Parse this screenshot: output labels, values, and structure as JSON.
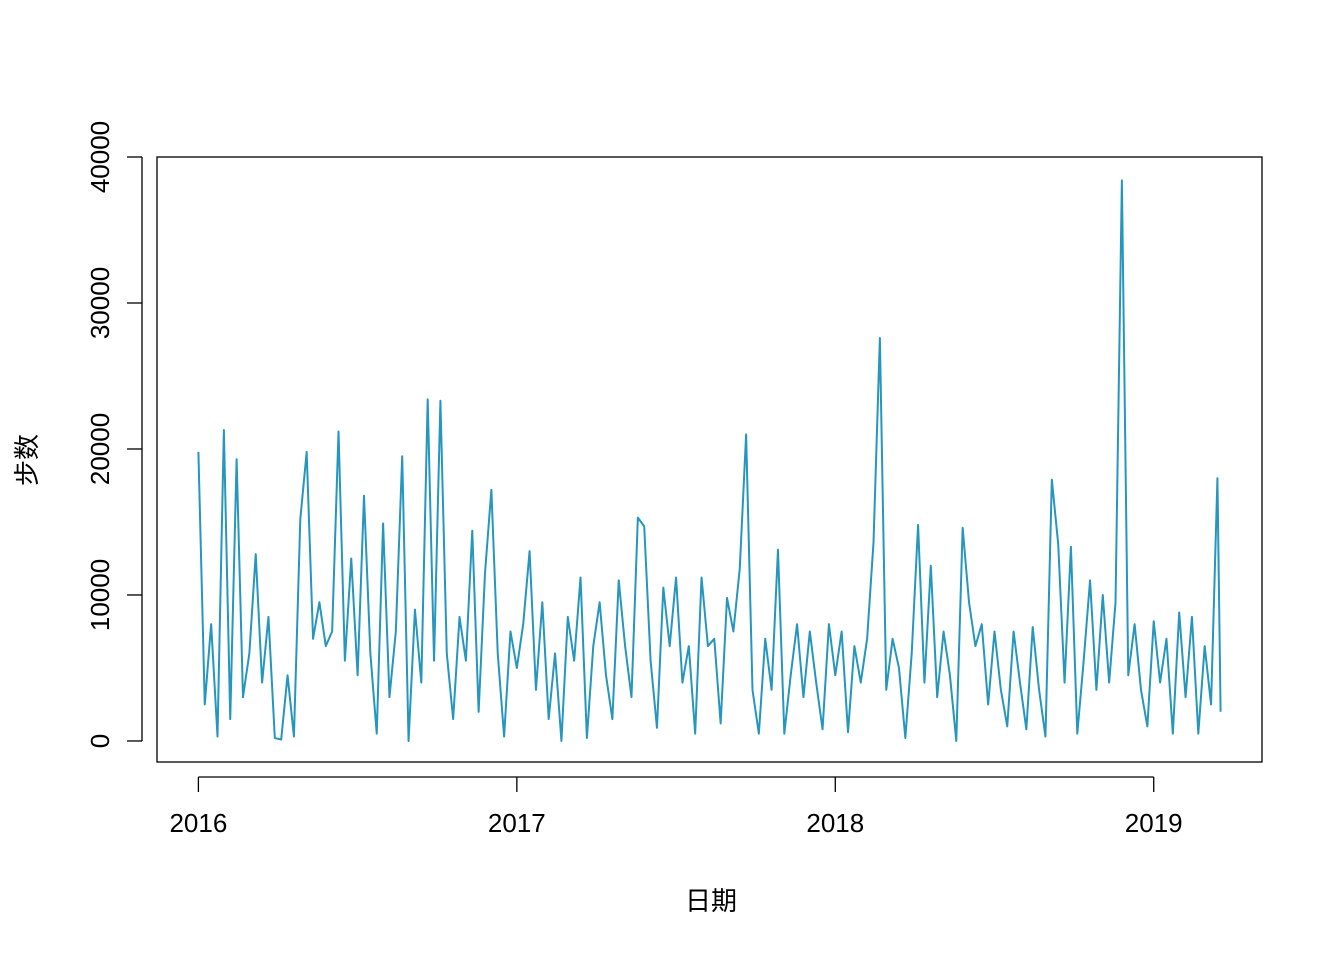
{
  "chart_data": {
    "type": "line",
    "xlabel": "日期",
    "ylabel": "步数",
    "color": "#2596be",
    "xlim": [
      2015.87,
      2019.34
    ],
    "ylim": [
      -1440,
      40000
    ],
    "xticks": [
      2016,
      2017,
      2018,
      2019
    ],
    "yticks": [
      0,
      10000,
      20000,
      30000,
      40000
    ],
    "x": [
      2016.0,
      2016.02,
      2016.04,
      2016.06,
      2016.08,
      2016.1,
      2016.12,
      2016.14,
      2016.16,
      2016.18,
      2016.2,
      2016.22,
      2016.24,
      2016.26,
      2016.28,
      2016.3,
      2016.32,
      2016.34,
      2016.36,
      2016.38,
      2016.4,
      2016.42,
      2016.44,
      2016.46,
      2016.48,
      2016.5,
      2016.52,
      2016.54,
      2016.56,
      2016.58,
      2016.6,
      2016.62,
      2016.64,
      2016.66,
      2016.68,
      2016.7,
      2016.72,
      2016.74,
      2016.76,
      2016.78,
      2016.8,
      2016.82,
      2016.84,
      2016.86,
      2016.88,
      2016.9,
      2016.92,
      2016.94,
      2016.96,
      2016.98,
      2017.0,
      2017.02,
      2017.04,
      2017.06,
      2017.08,
      2017.1,
      2017.12,
      2017.14,
      2017.16,
      2017.18,
      2017.2,
      2017.22,
      2017.24,
      2017.26,
      2017.28,
      2017.3,
      2017.32,
      2017.34,
      2017.36,
      2017.38,
      2017.4,
      2017.42,
      2017.44,
      2017.46,
      2017.48,
      2017.5,
      2017.52,
      2017.54,
      2017.56,
      2017.58,
      2017.6,
      2017.62,
      2017.64,
      2017.66,
      2017.68,
      2017.7,
      2017.72,
      2017.74,
      2017.76,
      2017.78,
      2017.8,
      2017.82,
      2017.84,
      2017.86,
      2017.88,
      2017.9,
      2017.92,
      2017.94,
      2017.96,
      2017.98,
      2018.0,
      2018.02,
      2018.04,
      2018.06,
      2018.08,
      2018.1,
      2018.12,
      2018.14,
      2018.16,
      2018.18,
      2018.2,
      2018.22,
      2018.24,
      2018.26,
      2018.28,
      2018.3,
      2018.32,
      2018.34,
      2018.36,
      2018.38,
      2018.4,
      2018.42,
      2018.44,
      2018.46,
      2018.48,
      2018.5,
      2018.52,
      2018.54,
      2018.56,
      2018.58,
      2018.6,
      2018.62,
      2018.64,
      2018.66,
      2018.68,
      2018.7,
      2018.72,
      2018.74,
      2018.76,
      2018.78,
      2018.8,
      2018.82,
      2018.84,
      2018.86,
      2018.88,
      2018.9,
      2018.92,
      2018.94,
      2018.96,
      2018.98,
      2019.0,
      2019.02,
      2019.04,
      2019.06,
      2019.08,
      2019.1,
      2019.12,
      2019.14,
      2019.16,
      2019.18,
      2019.2,
      2019.21
    ],
    "values": [
      19800,
      2500,
      8000,
      300,
      21300,
      1500,
      19300,
      3000,
      6000,
      12800,
      4000,
      8500,
      200,
      100,
      4500,
      300,
      15200,
      19800,
      7000,
      9500,
      6500,
      7500,
      21200,
      5500,
      12500,
      4500,
      16800,
      6000,
      500,
      14900,
      3000,
      7500,
      19500,
      0,
      9000,
      4000,
      23400,
      5500,
      23300,
      6000,
      1500,
      8500,
      5500,
      14400,
      2000,
      11500,
      17200,
      6000,
      300,
      7500,
      5000,
      8000,
      13000,
      3500,
      9500,
      1500,
      6000,
      0,
      8500,
      5500,
      11200,
      200,
      6500,
      9500,
      4500,
      1500,
      11000,
      6500,
      3000,
      15300,
      14700,
      5500,
      900,
      10500,
      6500,
      11200,
      4000,
      6500,
      500,
      11200,
      6500,
      7000,
      1200,
      9800,
      7500,
      11800,
      21000,
      3500,
      500,
      7000,
      3500,
      13100,
      500,
      4500,
      8000,
      3000,
      7500,
      4000,
      800,
      8000,
      4500,
      7500,
      600,
      6500,
      4000,
      7000,
      13600,
      27600,
      3500,
      7000,
      5000,
      200,
      6000,
      14800,
      4000,
      12000,
      3000,
      7500,
      4500,
      0,
      14600,
      9500,
      6500,
      8000,
      2500,
      7500,
      3500,
      1000,
      7500,
      4000,
      800,
      7800,
      3500,
      300,
      17900,
      13500,
      4000,
      13300,
      500,
      5500,
      11000,
      3500,
      10000,
      4000,
      9500,
      38400,
      4500,
      8000,
      3500,
      1000,
      8200,
      4000,
      7000,
      500,
      8800,
      3000,
      8500,
      500,
      6500,
      2500,
      18000,
      2000
    ]
  }
}
